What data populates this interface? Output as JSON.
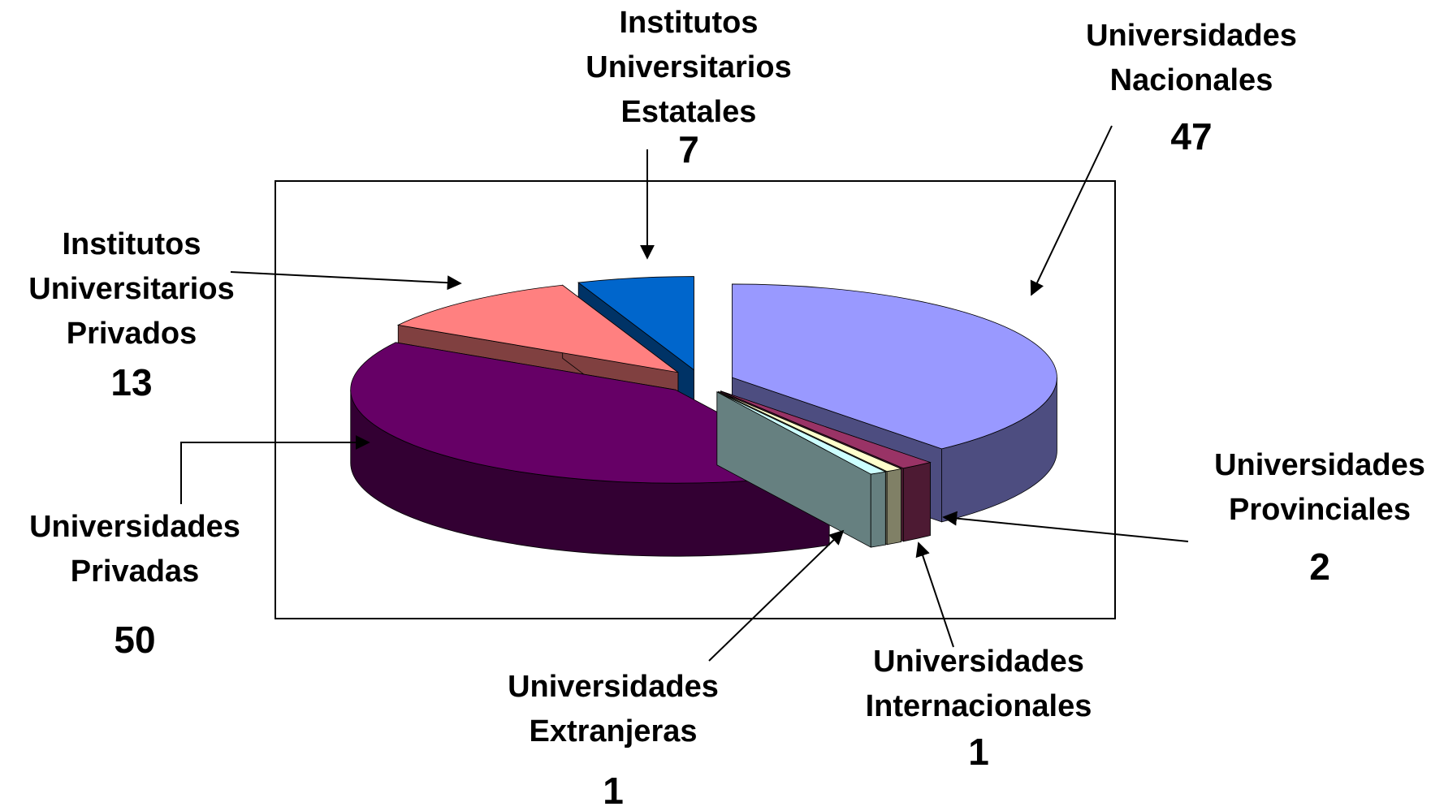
{
  "chart_data": {
    "type": "pie3d",
    "categories": [
      "Universidades Nacionales",
      "Universidades Provinciales",
      "Universidades Internacionales",
      "Universidades Extranjeras",
      "Universidades Privadas",
      "Institutos Universitarios Privados",
      "Institutos Universitarios Estatales"
    ],
    "values": [
      47,
      2,
      1,
      1,
      50,
      13,
      7
    ],
    "colors": [
      "#9999ff",
      "#993366",
      "#ffffcc",
      "#ccffff",
      "#660066",
      "#ff8080",
      "#0066cc"
    ]
  }
}
